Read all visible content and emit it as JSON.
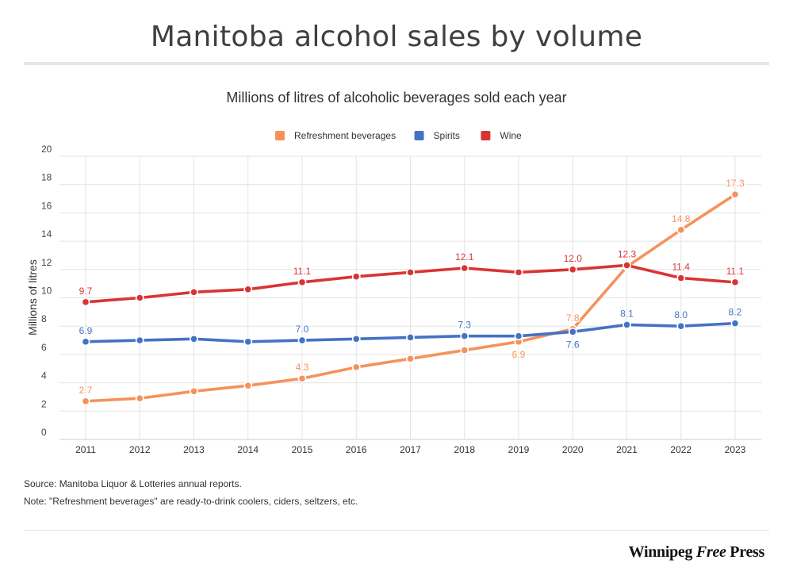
{
  "title": "Manitoba alcohol sales by volume",
  "footer": {
    "source": "Source: Manitoba Liquor & Lotteries annual reports.",
    "note": "Note: \"Refreshment beverages\" are ready-to-drink coolers, ciders, seltzers, etc.",
    "brand_a": "Winnipeg ",
    "brand_b": "Free",
    "brand_c": " Press"
  },
  "chart_data": {
    "type": "line",
    "title": "Millions of litres of alcoholic beverages sold each year",
    "ylabel": "Millions of litres",
    "xlabel": "",
    "ylim": [
      0,
      20
    ],
    "yticks": [
      0,
      2,
      4,
      6,
      8,
      10,
      12,
      14,
      16,
      18,
      20
    ],
    "grid": true,
    "legend_position": "top-center",
    "categories": [
      "2011",
      "2012",
      "2013",
      "2014",
      "2015",
      "2016",
      "2017",
      "2018",
      "2019",
      "2020",
      "2021",
      "2022",
      "2023"
    ],
    "series": [
      {
        "name": "Refreshment beverages",
        "color": "#f5925b",
        "values": [
          2.7,
          2.9,
          3.4,
          3.8,
          4.3,
          5.1,
          5.7,
          6.3,
          6.9,
          7.8,
          12.2,
          14.8,
          17.3
        ],
        "labeled": [
          0,
          4,
          8,
          9,
          11,
          12
        ],
        "label_pos": {
          "0": "above",
          "4": "above",
          "8": "below",
          "9": "above",
          "11": "above",
          "12": "above"
        }
      },
      {
        "name": "Spirits",
        "color": "#4472c4",
        "values": [
          6.9,
          7.0,
          7.1,
          6.9,
          7.0,
          7.1,
          7.2,
          7.3,
          7.3,
          7.6,
          8.1,
          8.0,
          8.2
        ],
        "labeled": [
          0,
          4,
          7,
          9,
          10,
          11,
          12
        ],
        "label_pos": {
          "0": "above",
          "4": "above",
          "7": "above",
          "9": "below",
          "10": "above",
          "11": "above",
          "12": "above"
        }
      },
      {
        "name": "Wine",
        "color": "#d93434",
        "values": [
          9.7,
          10.0,
          10.4,
          10.6,
          11.1,
          11.5,
          11.8,
          12.1,
          11.8,
          12.0,
          12.3,
          11.4,
          11.1
        ],
        "labeled": [
          0,
          4,
          7,
          9,
          10,
          11,
          12
        ],
        "label_pos": {
          "0": "above",
          "4": "above",
          "7": "above",
          "9": "above",
          "10": "above",
          "11": "above",
          "12": "above"
        }
      }
    ]
  }
}
